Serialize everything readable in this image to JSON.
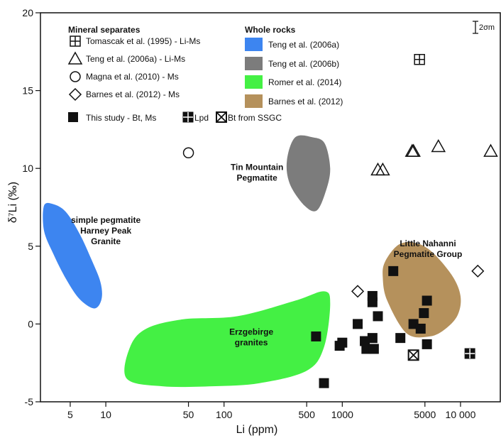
{
  "chart_data": {
    "type": "scatter",
    "xlabel": "Li (ppm)",
    "ylabel": "δ⁷Li (‰)",
    "x_scale": "log",
    "xlim": [
      2.8,
      22000
    ],
    "ylim": [
      -5,
      20
    ],
    "x_ticks": [
      {
        "value": 5,
        "label": "5"
      },
      {
        "value": 10,
        "label": "10"
      },
      {
        "value": 50,
        "label": "50"
      },
      {
        "value": 100,
        "label": "100"
      },
      {
        "value": 500,
        "label": "500"
      },
      {
        "value": 1000,
        "label": "1000"
      },
      {
        "value": 5000,
        "label": "5000"
      },
      {
        "value": 10000,
        "label": "10 000"
      }
    ],
    "y_ticks": [
      {
        "value": -5,
        "label": "-5"
      },
      {
        "value": 0,
        "label": "0"
      },
      {
        "value": 5,
        "label": "5"
      },
      {
        "value": 10,
        "label": "10"
      },
      {
        "value": 15,
        "label": "15"
      },
      {
        "value": 20,
        "label": "20"
      }
    ],
    "error_bar_label": "2σm",
    "legend": {
      "mineral_header": "Mineral separates",
      "whole_header": "Whole rocks",
      "mineral": [
        {
          "symbol": "square-plus",
          "label": "Tomascak et al. (1995) - Li-Ms"
        },
        {
          "symbol": "triangle",
          "label": "Teng et al. (2006a) - Li-Ms"
        },
        {
          "symbol": "circle",
          "label": "Magna et al. (2010) - Ms"
        },
        {
          "symbol": "diamond",
          "label": "Barnes et al. (2012) - Ms"
        }
      ],
      "this_study": {
        "label": "This study - Bt, Ms",
        "lpd_label": "Lpd",
        "ssgc_label": "Bt from SSGC"
      },
      "whole": [
        {
          "color": "#3d85f0",
          "label": "Teng et al. (2006a)"
        },
        {
          "color": "#7c7c7c",
          "label": "Teng et al. (2006b)"
        },
        {
          "color": "#44f044",
          "label": "Romer et al. (2014)"
        },
        {
          "color": "#b5915c",
          "label": "Barnes et al. (2012)"
        }
      ]
    },
    "fields": [
      {
        "name": "simple-pegmatite-field",
        "color": "#3d85f0",
        "polygon": [
          [
            3.0,
            7.6
          ],
          [
            3.6,
            7.7
          ],
          [
            4.6,
            7.2
          ],
          [
            6.0,
            5.8
          ],
          [
            7.5,
            4.2
          ],
          [
            9.0,
            2.7
          ],
          [
            9.2,
            1.6
          ],
          [
            8.0,
            1.0
          ],
          [
            6.0,
            1.6
          ],
          [
            4.6,
            2.9
          ],
          [
            3.6,
            4.5
          ],
          [
            3.0,
            6.0
          ]
        ]
      },
      {
        "name": "tin-mountain-field",
        "color": "#7c7c7c",
        "polygon": [
          [
            400,
            12.0
          ],
          [
            560,
            12.0
          ],
          [
            710,
            11.6
          ],
          [
            790,
            10.0
          ],
          [
            730,
            8.6
          ],
          [
            610,
            7.3
          ],
          [
            480,
            7.6
          ],
          [
            360,
            9.0
          ],
          [
            340,
            10.5
          ]
        ]
      },
      {
        "name": "erzgebirge-field",
        "color": "#44f044",
        "polygon": [
          [
            15,
            -3.5
          ],
          [
            16,
            -1.5
          ],
          [
            22,
            -0.3
          ],
          [
            45,
            0.3
          ],
          [
            130,
            0.5
          ],
          [
            400,
            1.5
          ],
          [
            700,
            2.1
          ],
          [
            790,
            1.3
          ],
          [
            700,
            -1.5
          ],
          [
            500,
            -3.0
          ],
          [
            200,
            -3.8
          ],
          [
            80,
            -4.0
          ],
          [
            30,
            -4.0
          ]
        ]
      },
      {
        "name": "little-nahanni-field",
        "color": "#b5915c",
        "polygon": [
          [
            2300,
            4.0
          ],
          [
            3000,
            5.1
          ],
          [
            4200,
            5.2
          ],
          [
            5800,
            4.6
          ],
          [
            8500,
            3.1
          ],
          [
            10000,
            1.8
          ],
          [
            9500,
            0.6
          ],
          [
            7500,
            -0.3
          ],
          [
            5500,
            -0.8
          ],
          [
            3500,
            -0.6
          ],
          [
            2400,
            1.5
          ],
          [
            2200,
            3.0
          ]
        ]
      }
    ],
    "series": [
      {
        "name": "Tomascak et al. (1995) - Li-Ms",
        "marker": "square-plus",
        "points": [
          [
            4500,
            17.0
          ]
        ]
      },
      {
        "name": "Teng et al. (2006a) - Li-Ms",
        "marker": "triangle",
        "points": [
          [
            2000,
            9.9
          ],
          [
            2200,
            9.9
          ],
          [
            3900,
            11.1
          ],
          [
            4000,
            11.1
          ],
          [
            6500,
            11.4
          ],
          [
            18000,
            11.1
          ]
        ]
      },
      {
        "name": "Magna et al. (2010) - Ms",
        "marker": "circle",
        "points": [
          [
            50,
            11.0
          ]
        ]
      },
      {
        "name": "Barnes et al. (2012) - Ms",
        "marker": "diamond",
        "points": [
          [
            1350,
            2.1
          ],
          [
            14000,
            3.4
          ]
        ]
      },
      {
        "name": "This study - Bt, Ms",
        "marker": "filled-square",
        "points": [
          [
            2700,
            3.4
          ],
          [
            1800,
            1.8
          ],
          [
            1800,
            1.4
          ],
          [
            2000,
            0.5
          ],
          [
            5200,
            1.5
          ],
          [
            4900,
            0.7
          ],
          [
            1350,
            0
          ],
          [
            4000,
            0
          ],
          [
            4600,
            -0.3
          ],
          [
            600,
            -0.8
          ],
          [
            1800,
            -0.9
          ],
          [
            1550,
            -1.1
          ],
          [
            3100,
            -0.9
          ],
          [
            1000,
            -1.2
          ],
          [
            950,
            -1.4
          ],
          [
            1600,
            -1.6
          ],
          [
            1850,
            -1.6
          ],
          [
            5200,
            -1.3
          ],
          [
            700,
            -3.8
          ]
        ]
      },
      {
        "name": "Lpd",
        "marker": "square-cross",
        "points": [
          [
            12000,
            -1.9
          ]
        ]
      },
      {
        "name": "Bt from SSGC",
        "marker": "square-x",
        "points": [
          [
            4000,
            -2.0
          ]
        ]
      }
    ],
    "annotations": [
      {
        "name": "simple-pegmatite-label",
        "lines": [
          "simple pegmatite",
          "Harney Peak",
          "Granite"
        ],
        "at": [
          10,
          6.5
        ]
      },
      {
        "name": "tin-mountain-label",
        "lines": [
          "Tin Mountain",
          "Pegmatite"
        ],
        "at": [
          190,
          9.9
        ]
      },
      {
        "name": "erzgebirge-label",
        "lines": [
          "Erzgebirge",
          "granites"
        ],
        "at": [
          170,
          -0.7
        ]
      },
      {
        "name": "little-nahanni-label",
        "lines": [
          "Little Nahanni",
          "Pegmatite Group"
        ],
        "at": [
          5300,
          5.0
        ]
      }
    ]
  }
}
